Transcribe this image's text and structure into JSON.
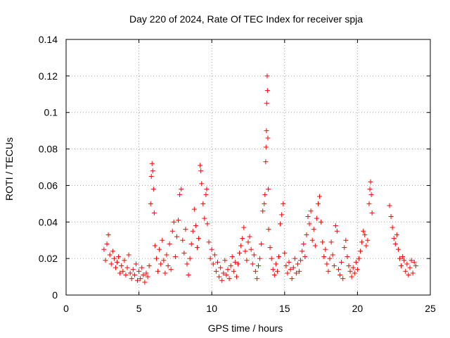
{
  "chart_data": {
    "type": "scatter",
    "title": "Day 220 of 2024, Rate Of TEC Index for receiver spja",
    "xlabel": "GPS time / hours",
    "ylabel": "ROTI / TECUs",
    "xlim": [
      0,
      25
    ],
    "ylim": [
      0,
      0.14
    ],
    "xticks": [
      0,
      5,
      10,
      15,
      20,
      25
    ],
    "xtick_labels": [
      "0",
      "5",
      "10",
      "15",
      "20",
      "25"
    ],
    "yticks": [
      0,
      0.02,
      0.04,
      0.06,
      0.08,
      0.1,
      0.12,
      0.14
    ],
    "ytick_labels": [
      "0",
      "0.02",
      "0.04",
      "0.06",
      "0.08",
      "0.1",
      "0.12",
      "0.14"
    ],
    "grid": true,
    "marker": "+",
    "series": [
      {
        "name": "ROTI",
        "color": "#ff0000",
        "points": [
          [
            2.6,
            0.025
          ],
          [
            2.7,
            0.019
          ],
          [
            2.8,
            0.028
          ],
          [
            2.9,
            0.033
          ],
          [
            3.0,
            0.022
          ],
          [
            3.1,
            0.017
          ],
          [
            3.2,
            0.024
          ],
          [
            3.3,
            0.02
          ],
          [
            3.4,
            0.015
          ],
          [
            3.5,
            0.018
          ],
          [
            3.6,
            0.021
          ],
          [
            3.7,
            0.012
          ],
          [
            3.8,
            0.016
          ],
          [
            3.9,
            0.013
          ],
          [
            4.0,
            0.019
          ],
          [
            4.1,
            0.011
          ],
          [
            4.2,
            0.015
          ],
          [
            4.3,
            0.022
          ],
          [
            4.4,
            0.012
          ],
          [
            4.5,
            0.009
          ],
          [
            4.6,
            0.014
          ],
          [
            4.7,
            0.011
          ],
          [
            4.8,
            0.017
          ],
          [
            4.9,
            0.008
          ],
          [
            5.0,
            0.013
          ],
          [
            5.1,
            0.009
          ],
          [
            5.2,
            0.015
          ],
          [
            5.3,
            0.011
          ],
          [
            5.4,
            0.007
          ],
          [
            5.5,
            0.012
          ],
          [
            5.6,
            0.01
          ],
          [
            5.7,
            0.016
          ],
          [
            5.8,
            0.05
          ],
          [
            5.85,
            0.065
          ],
          [
            5.9,
            0.072
          ],
          [
            5.95,
            0.068
          ],
          [
            6.0,
            0.058
          ],
          [
            6.05,
            0.045
          ],
          [
            6.1,
            0.027
          ],
          [
            6.2,
            0.02
          ],
          [
            6.3,
            0.013
          ],
          [
            6.4,
            0.025
          ],
          [
            6.5,
            0.017
          ],
          [
            6.6,
            0.03
          ],
          [
            6.7,
            0.019
          ],
          [
            6.8,
            0.012
          ],
          [
            6.9,
            0.022
          ],
          [
            7.0,
            0.016
          ],
          [
            7.1,
            0.028
          ],
          [
            7.2,
            0.014
          ],
          [
            7.3,
            0.035
          ],
          [
            7.4,
            0.04
          ],
          [
            7.5,
            0.021
          ],
          [
            7.6,
            0.032
          ],
          [
            7.7,
            0.041
          ],
          [
            7.8,
            0.055
          ],
          [
            7.9,
            0.058
          ],
          [
            8.0,
            0.03
          ],
          [
            8.1,
            0.023
          ],
          [
            8.2,
            0.036
          ],
          [
            8.3,
            0.017
          ],
          [
            8.4,
            0.011
          ],
          [
            8.5,
            0.02
          ],
          [
            8.6,
            0.028
          ],
          [
            8.7,
            0.035
          ],
          [
            8.8,
            0.047
          ],
          [
            8.9,
            0.038
          ],
          [
            9.0,
            0.026
          ],
          [
            9.1,
            0.031
          ],
          [
            9.2,
            0.071
          ],
          [
            9.25,
            0.068
          ],
          [
            9.3,
            0.061
          ],
          [
            9.4,
            0.05
          ],
          [
            9.5,
            0.042
          ],
          [
            9.6,
            0.055
          ],
          [
            9.65,
            0.058
          ],
          [
            9.7,
            0.039
          ],
          [
            9.8,
            0.029
          ],
          [
            9.9,
            0.02
          ],
          [
            10.0,
            0.025
          ],
          [
            10.1,
            0.017
          ],
          [
            10.2,
            0.022
          ],
          [
            10.3,
            0.013
          ],
          [
            10.4,
            0.018
          ],
          [
            10.5,
            0.01
          ],
          [
            10.6,
            0.015
          ],
          [
            10.7,
            0.008
          ],
          [
            10.8,
            0.012
          ],
          [
            10.9,
            0.019
          ],
          [
            11.0,
            0.011
          ],
          [
            11.1,
            0.014
          ],
          [
            11.2,
            0.009
          ],
          [
            11.3,
            0.016
          ],
          [
            11.4,
            0.021
          ],
          [
            11.5,
            0.013
          ],
          [
            11.6,
            0.018
          ],
          [
            11.7,
            0.01
          ],
          [
            11.8,
            0.017
          ],
          [
            11.9,
            0.023
          ],
          [
            12.0,
            0.027
          ],
          [
            12.1,
            0.031
          ],
          [
            12.2,
            0.037
          ],
          [
            12.3,
            0.024
          ],
          [
            12.4,
            0.019
          ],
          [
            12.5,
            0.029
          ],
          [
            12.6,
            0.032
          ],
          [
            12.7,
            0.025
          ],
          [
            12.8,
            0.017
          ],
          [
            12.9,
            0.022
          ],
          [
            13.0,
            0.013
          ],
          [
            13.1,
            0.009
          ],
          [
            13.2,
            0.016
          ],
          [
            13.3,
            0.02
          ],
          [
            13.4,
            0.028
          ],
          [
            13.5,
            0.046
          ],
          [
            13.6,
            0.05
          ],
          [
            13.65,
            0.055
          ],
          [
            13.7,
            0.073
          ],
          [
            13.72,
            0.081
          ],
          [
            13.75,
            0.09
          ],
          [
            13.77,
            0.105
          ],
          [
            13.8,
            0.12
          ],
          [
            13.82,
            0.112
          ],
          [
            13.85,
            0.086
          ],
          [
            13.88,
            0.058
          ],
          [
            13.9,
            0.036
          ],
          [
            14.0,
            0.026
          ],
          [
            14.1,
            0.02
          ],
          [
            14.2,
            0.014
          ],
          [
            14.3,
            0.011
          ],
          [
            14.4,
            0.017
          ],
          [
            14.5,
            0.013
          ],
          [
            14.6,
            0.021
          ],
          [
            14.7,
            0.039
          ],
          [
            14.8,
            0.044
          ],
          [
            14.9,
            0.05
          ],
          [
            15.0,
            0.023
          ],
          [
            15.1,
            0.016
          ],
          [
            15.2,
            0.012
          ],
          [
            15.3,
            0.018
          ],
          [
            15.4,
            0.014
          ],
          [
            15.5,
            0.009
          ],
          [
            15.6,
            0.015
          ],
          [
            15.7,
            0.02
          ],
          [
            15.8,
            0.012
          ],
          [
            15.9,
            0.017
          ],
          [
            16.0,
            0.013
          ],
          [
            16.1,
            0.019
          ],
          [
            16.2,
            0.024
          ],
          [
            16.3,
            0.028
          ],
          [
            16.4,
            0.021
          ],
          [
            16.5,
            0.033
          ],
          [
            16.6,
            0.043
          ],
          [
            16.7,
            0.039
          ],
          [
            16.8,
            0.046
          ],
          [
            16.9,
            0.03
          ],
          [
            17.0,
            0.036
          ],
          [
            17.1,
            0.027
          ],
          [
            17.2,
            0.042
          ],
          [
            17.3,
            0.05
          ],
          [
            17.4,
            0.054
          ],
          [
            17.5,
            0.04
          ],
          [
            17.6,
            0.029
          ],
          [
            17.7,
            0.021
          ],
          [
            17.8,
            0.025
          ],
          [
            17.9,
            0.017
          ],
          [
            18.0,
            0.013
          ],
          [
            18.1,
            0.02
          ],
          [
            18.2,
            0.029
          ],
          [
            18.3,
            0.022
          ],
          [
            18.4,
            0.016
          ],
          [
            18.5,
            0.038
          ],
          [
            18.6,
            0.035
          ],
          [
            18.7,
            0.014
          ],
          [
            18.8,
            0.011
          ],
          [
            18.9,
            0.018
          ],
          [
            19.0,
            0.009
          ],
          [
            19.1,
            0.026
          ],
          [
            19.2,
            0.03
          ],
          [
            19.3,
            0.021
          ],
          [
            19.4,
            0.016
          ],
          [
            19.5,
            0.013
          ],
          [
            19.6,
            0.01
          ],
          [
            19.7,
            0.015
          ],
          [
            19.8,
            0.012
          ],
          [
            19.9,
            0.018
          ],
          [
            20.0,
            0.014
          ],
          [
            20.1,
            0.02
          ],
          [
            20.2,
            0.024
          ],
          [
            20.3,
            0.029
          ],
          [
            20.4,
            0.035
          ],
          [
            20.5,
            0.033
          ],
          [
            20.6,
            0.027
          ],
          [
            20.7,
            0.03
          ],
          [
            20.8,
            0.05
          ],
          [
            20.85,
            0.058
          ],
          [
            20.9,
            0.062
          ],
          [
            20.95,
            0.055
          ],
          [
            21.0,
            0.045
          ],
          [
            22.2,
            0.049
          ],
          [
            22.3,
            0.043
          ],
          [
            22.4,
            0.037
          ],
          [
            22.5,
            0.031
          ],
          [
            22.6,
            0.028
          ],
          [
            22.7,
            0.033
          ],
          [
            22.8,
            0.025
          ],
          [
            22.9,
            0.02
          ],
          [
            23.0,
            0.016
          ],
          [
            23.1,
            0.021
          ],
          [
            23.2,
            0.019
          ],
          [
            23.3,
            0.013
          ],
          [
            23.4,
            0.017
          ],
          [
            23.5,
            0.011
          ],
          [
            23.6,
            0.015
          ],
          [
            23.7,
            0.019
          ],
          [
            23.8,
            0.012
          ],
          [
            23.9,
            0.018
          ],
          [
            24.0,
            0.016
          ]
        ]
      }
    ]
  }
}
